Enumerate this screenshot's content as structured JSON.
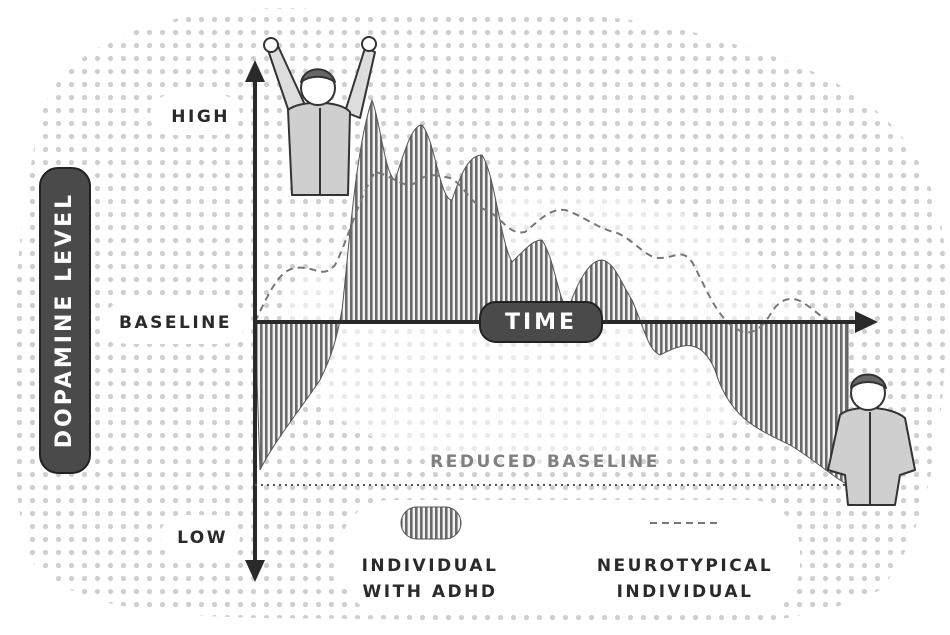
{
  "axis": {
    "high": "HIGH",
    "baseline": "BASELINE",
    "low": "LOW",
    "y_title": "DOPAMINE LEVEL",
    "x_title": "TIME"
  },
  "annotation": "REDUCED BASELINE",
  "legend": [
    {
      "lines": [
        "INDIVIDUAL",
        "WITH ADHD"
      ]
    },
    {
      "lines": [
        "NEUROTYPICAL",
        "INDIVIDUAL"
      ]
    }
  ]
}
